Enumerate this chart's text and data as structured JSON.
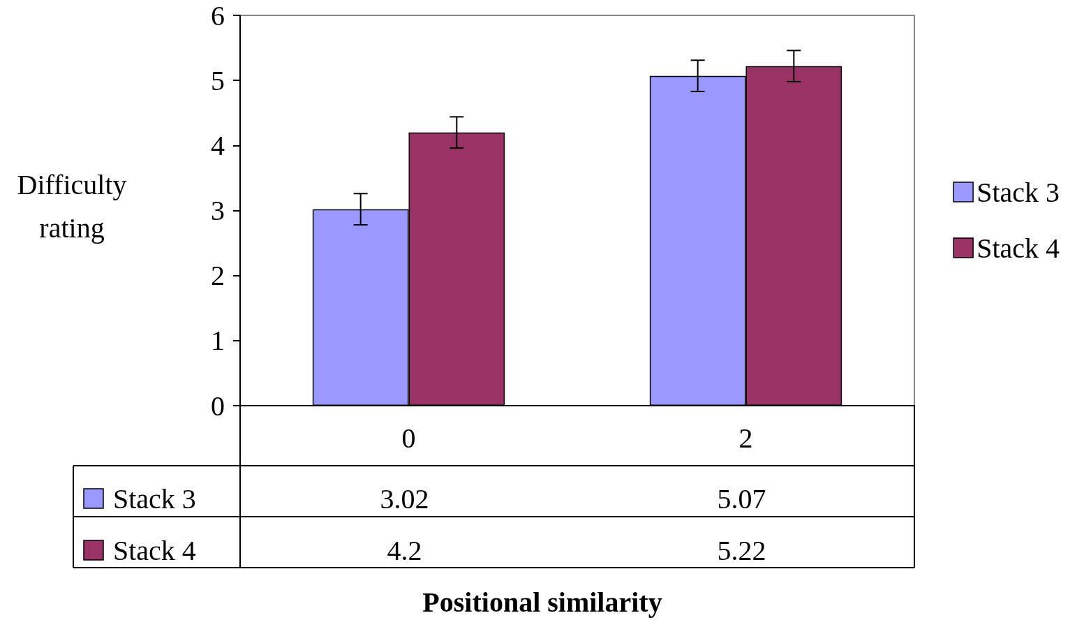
{
  "chart_data": {
    "type": "bar",
    "xlabel": "Positional similarity",
    "ylabel": "Difficulty rating",
    "categories": [
      "0",
      "2"
    ],
    "series": [
      {
        "name": "Stack 3",
        "color": "#9999ff",
        "values": [
          3.02,
          5.07
        ],
        "errors": [
          0.24,
          0.24
        ]
      },
      {
        "name": "Stack 4",
        "color": "#993366",
        "values": [
          4.2,
          5.22
        ],
        "errors": [
          0.24,
          0.24
        ]
      }
    ],
    "ylim": [
      0,
      6
    ],
    "yticks": [
      0,
      1,
      2,
      3,
      4,
      5,
      6
    ],
    "grid": false,
    "legend": "right",
    "data_labels": true
  }
}
